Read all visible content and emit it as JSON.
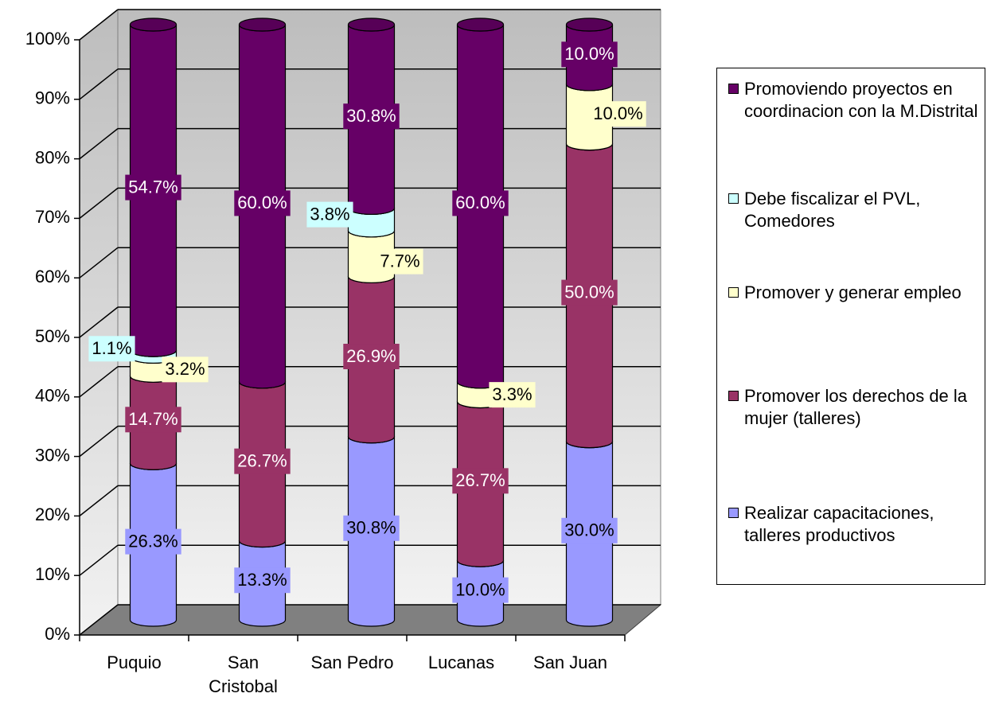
{
  "chart_data": {
    "type": "bar3d_stacked_cylinder",
    "categories": [
      "Puquio",
      "San Cristobal",
      "San Pedro",
      "Lucanas",
      "San Juan"
    ],
    "series": [
      {
        "name": "Realizar capacitaciones, talleres productivos",
        "color": "#9999ff",
        "values": [
          26.3,
          13.3,
          30.8,
          10.0,
          30.0
        ],
        "value_labels": [
          "26.3%",
          "13.3%",
          "30.8%",
          "10.0%",
          "30.0%"
        ]
      },
      {
        "name": "Promover los derechos de la mujer (talleres)",
        "color": "#993366",
        "values": [
          14.7,
          26.7,
          26.9,
          26.7,
          50.0
        ],
        "value_labels": [
          "14.7%",
          "26.7%",
          "26.9%",
          "26.7%",
          "50.0%"
        ]
      },
      {
        "name": "Promover y generar empleo",
        "color": "#ffffcc",
        "values": [
          3.2,
          null,
          7.7,
          3.3,
          10.0
        ],
        "value_labels": [
          "3.2%",
          null,
          "7.7%",
          "3.3%",
          "10.0%"
        ]
      },
      {
        "name": "Debe fiscalizar el PVL, Comedores",
        "color": "#ccffff",
        "values": [
          1.1,
          null,
          3.8,
          null,
          null
        ],
        "value_labels": [
          "1.1%",
          null,
          "3.8%",
          null,
          null
        ]
      },
      {
        "name": "Promoviendo proyectos en coordinacion con la M.Distrital",
        "color": "#660066",
        "values": [
          54.7,
          60.0,
          30.8,
          60.0,
          10.0
        ],
        "value_labels": [
          "54.7%",
          "60.0%",
          "30.8%",
          "60.0%",
          "10.0%"
        ]
      }
    ],
    "ylim": [
      0,
      100
    ],
    "yticks": [
      {
        "value": 0,
        "label": "0%"
      },
      {
        "value": 10,
        "label": "10%"
      },
      {
        "value": 20,
        "label": "20%"
      },
      {
        "value": 30,
        "label": "30%"
      },
      {
        "value": 40,
        "label": "40%"
      },
      {
        "value": 50,
        "label": "50%"
      },
      {
        "value": 60,
        "label": "60%"
      },
      {
        "value": 70,
        "label": "70%"
      },
      {
        "value": 80,
        "label": "80%"
      },
      {
        "value": 90,
        "label": "90%"
      },
      {
        "value": 100,
        "label": "100%"
      }
    ],
    "grid": true,
    "legend": "right"
  }
}
